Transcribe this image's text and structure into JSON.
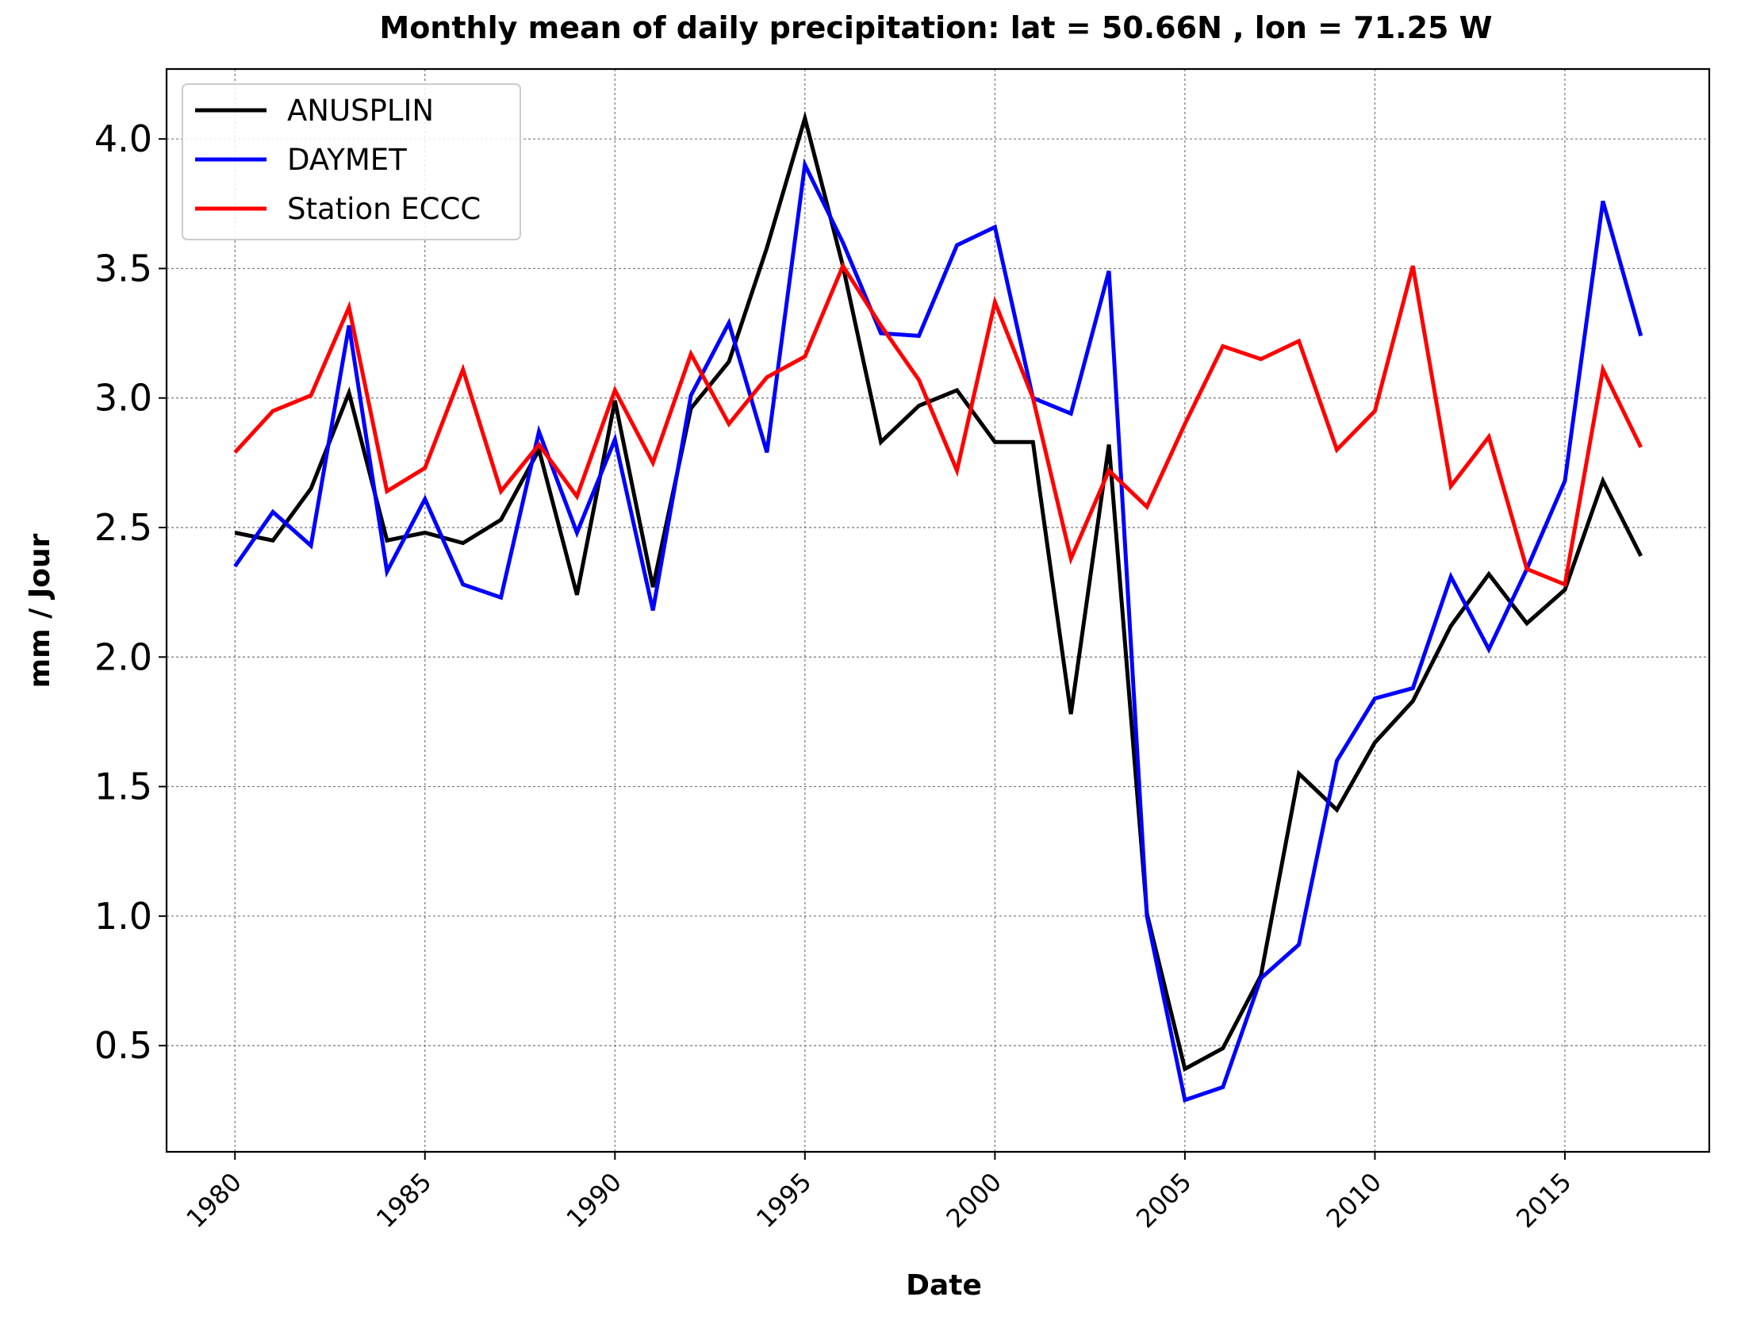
{
  "chart_data": {
    "type": "line",
    "title": "Monthly mean of daily precipitation: lat = 50.66N , lon = 71.25 W",
    "xlabel": "Date",
    "ylabel": "mm / Jour",
    "x": [
      1980,
      1981,
      1982,
      1983,
      1984,
      1985,
      1986,
      1987,
      1988,
      1989,
      1990,
      1991,
      1992,
      1993,
      1994,
      1995,
      1996,
      1997,
      1998,
      1999,
      2000,
      2001,
      2002,
      2003,
      2004,
      2005,
      2006,
      2007,
      2008,
      2009,
      2010,
      2011,
      2012,
      2013,
      2014,
      2015,
      2016,
      2017
    ],
    "xlim": [
      1978.2,
      2018.8
    ],
    "ylim": [
      0.09,
      4.27
    ],
    "xticks": [
      1980,
      1985,
      1990,
      1995,
      2000,
      2005,
      2010,
      2015
    ],
    "xtick_labels": [
      "1980",
      "1985",
      "1990",
      "1995",
      "2000",
      "2005",
      "2010",
      "2015"
    ],
    "yticks": [
      0.5,
      1.0,
      1.5,
      2.0,
      2.5,
      3.0,
      3.5,
      4.0
    ],
    "ytick_labels": [
      "0.5",
      "1.0",
      "1.5",
      "2.0",
      "2.5",
      "3.0",
      "3.5",
      "4.0"
    ],
    "grid": true,
    "legend_position": "top-left",
    "series": [
      {
        "name": "ANUSPLIN",
        "color": "#000000",
        "values": [
          2.48,
          2.45,
          2.65,
          3.02,
          2.45,
          2.48,
          2.44,
          2.53,
          2.8,
          2.24,
          2.99,
          2.27,
          2.96,
          3.14,
          3.58,
          4.08,
          3.51,
          2.83,
          2.97,
          3.03,
          2.83,
          2.83,
          1.78,
          2.82,
          1.01,
          0.41,
          0.49,
          0.77,
          1.55,
          1.41,
          1.67,
          1.83,
          2.12,
          2.32,
          2.13,
          2.26,
          2.68,
          2.39
        ]
      },
      {
        "name": "DAYMET",
        "color": "#0000ff",
        "values": [
          2.35,
          2.56,
          2.43,
          3.28,
          2.33,
          2.61,
          2.28,
          2.23,
          2.87,
          2.48,
          2.84,
          2.18,
          3.01,
          3.29,
          2.79,
          3.9,
          3.6,
          3.25,
          3.24,
          3.59,
          3.66,
          3.0,
          2.94,
          3.49,
          1.0,
          0.29,
          0.34,
          0.76,
          0.89,
          1.6,
          1.84,
          1.88,
          2.31,
          2.03,
          2.34,
          2.68,
          3.76,
          3.24
        ]
      },
      {
        "name": "Station ECCC",
        "color": "#ff0000",
        "values": [
          2.79,
          2.95,
          3.01,
          3.35,
          2.64,
          2.73,
          3.11,
          2.64,
          2.82,
          2.62,
          3.03,
          2.75,
          3.17,
          2.9,
          3.08,
          3.16,
          3.51,
          3.28,
          3.07,
          2.72,
          3.37,
          3.0,
          2.38,
          2.72,
          2.58,
          2.9,
          3.2,
          3.15,
          3.22,
          2.8,
          2.95,
          3.51,
          2.66,
          2.85,
          2.34,
          2.28,
          3.11,
          2.81
        ]
      }
    ]
  }
}
